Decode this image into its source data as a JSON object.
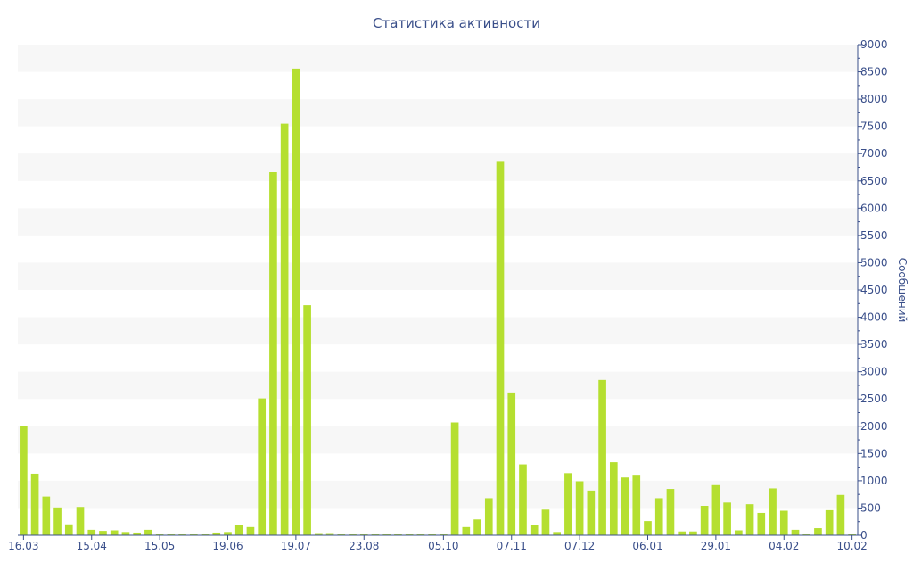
{
  "chart_data": {
    "type": "bar",
    "title": "Статистика активности",
    "xlabel": "",
    "ylabel": "Сообщений",
    "y_axis_side": "right",
    "ylim": [
      0,
      9000
    ],
    "yticks": [
      0,
      500,
      1000,
      1500,
      2000,
      2500,
      3000,
      3500,
      4000,
      4500,
      5000,
      5500,
      6000,
      6500,
      7000,
      7500,
      8000,
      8500,
      9000
    ],
    "x_tick_labels": [
      {
        "label": "16.03",
        "index": 0
      },
      {
        "label": "15.04",
        "index": 6
      },
      {
        "label": "15.05",
        "index": 12
      },
      {
        "label": "19.06",
        "index": 18
      },
      {
        "label": "19.07",
        "index": 24
      },
      {
        "label": "23.08",
        "index": 30
      },
      {
        "label": "05.10",
        "index": 37
      },
      {
        "label": "07.11",
        "index": 43
      },
      {
        "label": "07.12",
        "index": 49
      },
      {
        "label": "06.01",
        "index": 55
      },
      {
        "label": "29.01",
        "index": 61
      },
      {
        "label": "04.02",
        "index": 67
      },
      {
        "label": "10.02",
        "index": 73
      }
    ],
    "values": [
      2000,
      1130,
      710,
      510,
      200,
      520,
      100,
      80,
      90,
      60,
      50,
      100,
      30,
      20,
      20,
      20,
      30,
      50,
      60,
      180,
      150,
      2510,
      6660,
      7550,
      8560,
      4220,
      40,
      40,
      30,
      30,
      20,
      20,
      20,
      20,
      20,
      20,
      20,
      30,
      2070,
      150,
      290,
      680,
      6850,
      2620,
      1300,
      180,
      470,
      60,
      1140,
      990,
      820,
      2850,
      1340,
      1060,
      1110,
      260,
      680,
      850,
      70,
      70,
      540,
      920,
      600,
      90,
      570,
      410,
      860,
      450,
      100,
      30,
      130,
      460,
      740,
      30
    ],
    "colors": {
      "bar": "#b5df30",
      "text": "#3a4f8a",
      "axis": "#3a4f8a",
      "band": "#f7f7f7"
    },
    "grid": "alternating horizontal bands"
  }
}
